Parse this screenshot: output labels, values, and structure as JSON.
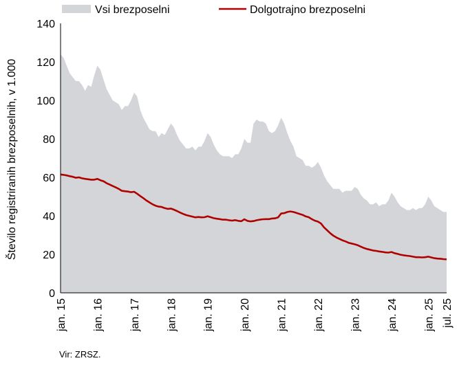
{
  "chart_data": {
    "type": "area",
    "ylabel": "Število registriranih brezposelnih, v 1.000",
    "ylim": [
      0,
      140
    ],
    "yticks": [
      0,
      20,
      40,
      60,
      80,
      100,
      120,
      140
    ],
    "xlabels": [
      "jan. 15",
      "jan. 16",
      "jan. 17",
      "jan. 18",
      "jan. 19",
      "jan. 20",
      "jan. 21",
      "jan. 22",
      "jan. 23",
      "jan. 24",
      "jan. 25",
      "jul. 25"
    ],
    "legend_position": "top",
    "series": [
      {
        "name": "Vsi brezposelni",
        "style": "area",
        "color": "#d3d5d8",
        "points": [
          [
            "2015-01",
            124
          ],
          [
            "2015-02",
            122
          ],
          [
            "2015-03",
            118
          ],
          [
            "2015-04",
            114
          ],
          [
            "2015-05",
            112
          ],
          [
            "2015-06",
            110
          ],
          [
            "2015-07",
            110
          ],
          [
            "2015-08",
            108
          ],
          [
            "2015-09",
            105
          ],
          [
            "2015-10",
            108
          ],
          [
            "2015-11",
            107
          ],
          [
            "2015-12",
            113
          ],
          [
            "2016-01",
            118
          ],
          [
            "2016-02",
            116
          ],
          [
            "2016-03",
            111
          ],
          [
            "2016-04",
            106
          ],
          [
            "2016-05",
            103
          ],
          [
            "2016-06",
            100
          ],
          [
            "2016-07",
            99
          ],
          [
            "2016-08",
            98
          ],
          [
            "2016-09",
            95
          ],
          [
            "2016-10",
            97
          ],
          [
            "2016-11",
            97
          ],
          [
            "2016-12",
            100
          ],
          [
            "2017-01",
            104
          ],
          [
            "2017-02",
            102
          ],
          [
            "2017-03",
            95
          ],
          [
            "2017-04",
            91
          ],
          [
            "2017-05",
            88
          ],
          [
            "2017-06",
            85
          ],
          [
            "2017-07",
            84
          ],
          [
            "2017-08",
            84
          ],
          [
            "2017-09",
            81
          ],
          [
            "2017-10",
            83
          ],
          [
            "2017-11",
            82
          ],
          [
            "2017-12",
            85
          ],
          [
            "2018-01",
            88
          ],
          [
            "2018-02",
            86
          ],
          [
            "2018-03",
            82
          ],
          [
            "2018-04",
            79
          ],
          [
            "2018-05",
            77
          ],
          [
            "2018-06",
            75
          ],
          [
            "2018-07",
            75
          ],
          [
            "2018-08",
            76
          ],
          [
            "2018-09",
            74
          ],
          [
            "2018-10",
            76
          ],
          [
            "2018-11",
            76
          ],
          [
            "2018-12",
            79
          ],
          [
            "2019-01",
            83
          ],
          [
            "2019-02",
            81
          ],
          [
            "2019-03",
            77
          ],
          [
            "2019-04",
            74
          ],
          [
            "2019-05",
            72
          ],
          [
            "2019-06",
            71
          ],
          [
            "2019-07",
            71
          ],
          [
            "2019-08",
            71
          ],
          [
            "2019-09",
            70
          ],
          [
            "2019-10",
            72
          ],
          [
            "2019-11",
            72
          ],
          [
            "2019-12",
            75
          ],
          [
            "2020-01",
            80
          ],
          [
            "2020-02",
            78
          ],
          [
            "2020-03",
            78
          ],
          [
            "2020-04",
            88
          ],
          [
            "2020-05",
            90
          ],
          [
            "2020-06",
            89
          ],
          [
            "2020-07",
            89
          ],
          [
            "2020-08",
            88
          ],
          [
            "2020-09",
            84
          ],
          [
            "2020-10",
            83
          ],
          [
            "2020-11",
            84
          ],
          [
            "2020-12",
            87
          ],
          [
            "2021-01",
            91
          ],
          [
            "2021-02",
            88
          ],
          [
            "2021-03",
            83
          ],
          [
            "2021-04",
            79
          ],
          [
            "2021-05",
            76
          ],
          [
            "2021-06",
            71
          ],
          [
            "2021-07",
            70
          ],
          [
            "2021-08",
            69
          ],
          [
            "2021-09",
            66
          ],
          [
            "2021-10",
            66
          ],
          [
            "2021-11",
            65
          ],
          [
            "2021-12",
            66
          ],
          [
            "2022-01",
            68
          ],
          [
            "2022-02",
            65
          ],
          [
            "2022-03",
            61
          ],
          [
            "2022-04",
            58
          ],
          [
            "2022-05",
            56
          ],
          [
            "2022-06",
            54
          ],
          [
            "2022-07",
            54
          ],
          [
            "2022-08",
            54
          ],
          [
            "2022-09",
            52
          ],
          [
            "2022-10",
            53
          ],
          [
            "2022-11",
            53
          ],
          [
            "2022-12",
            53
          ],
          [
            "2023-01",
            55
          ],
          [
            "2023-02",
            54
          ],
          [
            "2023-03",
            51
          ],
          [
            "2023-04",
            49
          ],
          [
            "2023-05",
            48
          ],
          [
            "2023-06",
            46
          ],
          [
            "2023-07",
            46
          ],
          [
            "2023-08",
            47
          ],
          [
            "2023-09",
            45
          ],
          [
            "2023-10",
            46
          ],
          [
            "2023-11",
            46
          ],
          [
            "2023-12",
            48
          ],
          [
            "2024-01",
            52
          ],
          [
            "2024-02",
            50
          ],
          [
            "2024-03",
            47
          ],
          [
            "2024-04",
            45
          ],
          [
            "2024-05",
            44
          ],
          [
            "2024-06",
            43
          ],
          [
            "2024-07",
            43
          ],
          [
            "2024-08",
            44
          ],
          [
            "2024-09",
            43
          ],
          [
            "2024-10",
            44
          ],
          [
            "2024-11",
            44
          ],
          [
            "2024-12",
            46
          ],
          [
            "2025-01",
            50
          ],
          [
            "2025-02",
            48
          ],
          [
            "2025-03",
            45
          ],
          [
            "2025-04",
            44
          ],
          [
            "2025-05",
            43
          ],
          [
            "2025-06",
            42
          ],
          [
            "2025-07",
            42
          ]
        ]
      },
      {
        "name": "Dolgotrajno brezposelni",
        "style": "line",
        "color": "#b00000",
        "points": [
          [
            "2015-01",
            61.5
          ],
          [
            "2015-02",
            61.3
          ],
          [
            "2015-03",
            61
          ],
          [
            "2015-04",
            60.6
          ],
          [
            "2015-05",
            60.3
          ],
          [
            "2015-06",
            59.8
          ],
          [
            "2015-07",
            60
          ],
          [
            "2015-08",
            59.5
          ],
          [
            "2015-09",
            59.2
          ],
          [
            "2015-10",
            59
          ],
          [
            "2015-11",
            58.8
          ],
          [
            "2015-12",
            58.8
          ],
          [
            "2016-01",
            59.2
          ],
          [
            "2016-02",
            58.5
          ],
          [
            "2016-03",
            58
          ],
          [
            "2016-04",
            57
          ],
          [
            "2016-05",
            56.3
          ],
          [
            "2016-06",
            55.5
          ],
          [
            "2016-07",
            54.8
          ],
          [
            "2016-08",
            54
          ],
          [
            "2016-09",
            53
          ],
          [
            "2016-10",
            52.8
          ],
          [
            "2016-11",
            52.6
          ],
          [
            "2016-12",
            52.3
          ],
          [
            "2017-01",
            52.5
          ],
          [
            "2017-02",
            51.5
          ],
          [
            "2017-03",
            50.3
          ],
          [
            "2017-04",
            49.2
          ],
          [
            "2017-05",
            48
          ],
          [
            "2017-06",
            47
          ],
          [
            "2017-07",
            46
          ],
          [
            "2017-08",
            45.3
          ],
          [
            "2017-09",
            44.8
          ],
          [
            "2017-10",
            44.6
          ],
          [
            "2017-11",
            44
          ],
          [
            "2017-12",
            43.6
          ],
          [
            "2018-01",
            43.8
          ],
          [
            "2018-02",
            43.2
          ],
          [
            "2018-03",
            42.5
          ],
          [
            "2018-04",
            41.7
          ],
          [
            "2018-05",
            41
          ],
          [
            "2018-06",
            40.4
          ],
          [
            "2018-07",
            40
          ],
          [
            "2018-08",
            39.6
          ],
          [
            "2018-09",
            39.2
          ],
          [
            "2018-10",
            39.4
          ],
          [
            "2018-11",
            39.2
          ],
          [
            "2018-12",
            39.3
          ],
          [
            "2019-01",
            39.8
          ],
          [
            "2019-02",
            39.3
          ],
          [
            "2019-03",
            38.8
          ],
          [
            "2019-04",
            38.5
          ],
          [
            "2019-05",
            38.3
          ],
          [
            "2019-06",
            38
          ],
          [
            "2019-07",
            38
          ],
          [
            "2019-08",
            37.7
          ],
          [
            "2019-09",
            37.5
          ],
          [
            "2019-10",
            37.8
          ],
          [
            "2019-11",
            37.4
          ],
          [
            "2019-12",
            37.2
          ],
          [
            "2020-01",
            38.2
          ],
          [
            "2020-02",
            37.4
          ],
          [
            "2020-03",
            37.1
          ],
          [
            "2020-04",
            37.3
          ],
          [
            "2020-05",
            37.7
          ],
          [
            "2020-06",
            38
          ],
          [
            "2020-07",
            38.2
          ],
          [
            "2020-08",
            38.3
          ],
          [
            "2020-09",
            38.3
          ],
          [
            "2020-10",
            38.6
          ],
          [
            "2020-11",
            38.7
          ],
          [
            "2020-12",
            39.2
          ],
          [
            "2021-01",
            41.2
          ],
          [
            "2021-02",
            41.4
          ],
          [
            "2021-03",
            42
          ],
          [
            "2021-04",
            42.3
          ],
          [
            "2021-05",
            42
          ],
          [
            "2021-06",
            41.5
          ],
          [
            "2021-07",
            41
          ],
          [
            "2021-08",
            40.5
          ],
          [
            "2021-09",
            39.7
          ],
          [
            "2021-10",
            39.3
          ],
          [
            "2021-11",
            38.3
          ],
          [
            "2021-12",
            37.5
          ],
          [
            "2022-01",
            37
          ],
          [
            "2022-02",
            36
          ],
          [
            "2022-03",
            34
          ],
          [
            "2022-04",
            32.5
          ],
          [
            "2022-05",
            31
          ],
          [
            "2022-06",
            29.7
          ],
          [
            "2022-07",
            28.8
          ],
          [
            "2022-08",
            28
          ],
          [
            "2022-09",
            27.3
          ],
          [
            "2022-10",
            26.7
          ],
          [
            "2022-11",
            26
          ],
          [
            "2022-12",
            25.6
          ],
          [
            "2023-01",
            25.2
          ],
          [
            "2023-02",
            24.7
          ],
          [
            "2023-03",
            24
          ],
          [
            "2023-04",
            23.3
          ],
          [
            "2023-05",
            22.8
          ],
          [
            "2023-06",
            22.4
          ],
          [
            "2023-07",
            22
          ],
          [
            "2023-08",
            21.8
          ],
          [
            "2023-09",
            21.5
          ],
          [
            "2023-10",
            21.3
          ],
          [
            "2023-11",
            21
          ],
          [
            "2023-12",
            20.9
          ],
          [
            "2024-01",
            21.2
          ],
          [
            "2024-02",
            20.6
          ],
          [
            "2024-03",
            20.2
          ],
          [
            "2024-04",
            19.8
          ],
          [
            "2024-05",
            19.5
          ],
          [
            "2024-06",
            19.3
          ],
          [
            "2024-07",
            19.1
          ],
          [
            "2024-08",
            18.8
          ],
          [
            "2024-09",
            18.5
          ],
          [
            "2024-10",
            18.5
          ],
          [
            "2024-11",
            18.4
          ],
          [
            "2024-12",
            18.5
          ],
          [
            "2025-01",
            18.8
          ],
          [
            "2025-02",
            18.4
          ],
          [
            "2025-03",
            18
          ],
          [
            "2025-04",
            17.8
          ],
          [
            "2025-05",
            17.7
          ],
          [
            "2025-06",
            17.5
          ],
          [
            "2025-07",
            17.4
          ]
        ]
      }
    ]
  },
  "source": "Vir: ZRSZ."
}
